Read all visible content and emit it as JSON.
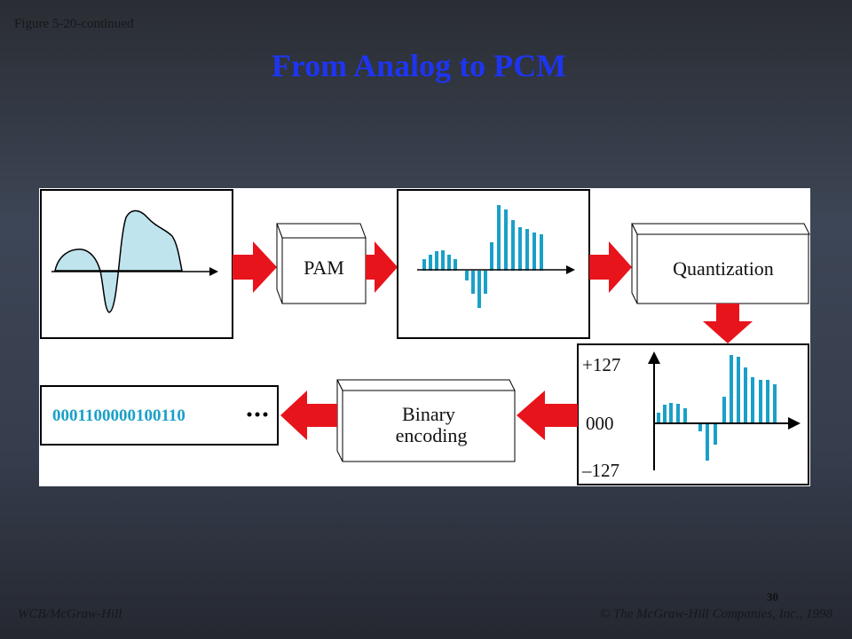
{
  "header": {
    "figure_label": "Figure 5-20-continued",
    "title": "From Analog to PCM"
  },
  "diagram": {
    "pam_box": "PAM",
    "quantization_box": "Quantization",
    "quantized_axis": {
      "top": "+127",
      "middle": "000",
      "bottom": "–127"
    },
    "binary_box": [
      "Binary",
      "encoding"
    ],
    "bit_stream": "0001100000100110"
  },
  "footer": {
    "page_number": "30",
    "publisher": "WCB/McGraw-Hill",
    "copyright": "© The McGraw-Hill Companies, Inc., 1998"
  }
}
